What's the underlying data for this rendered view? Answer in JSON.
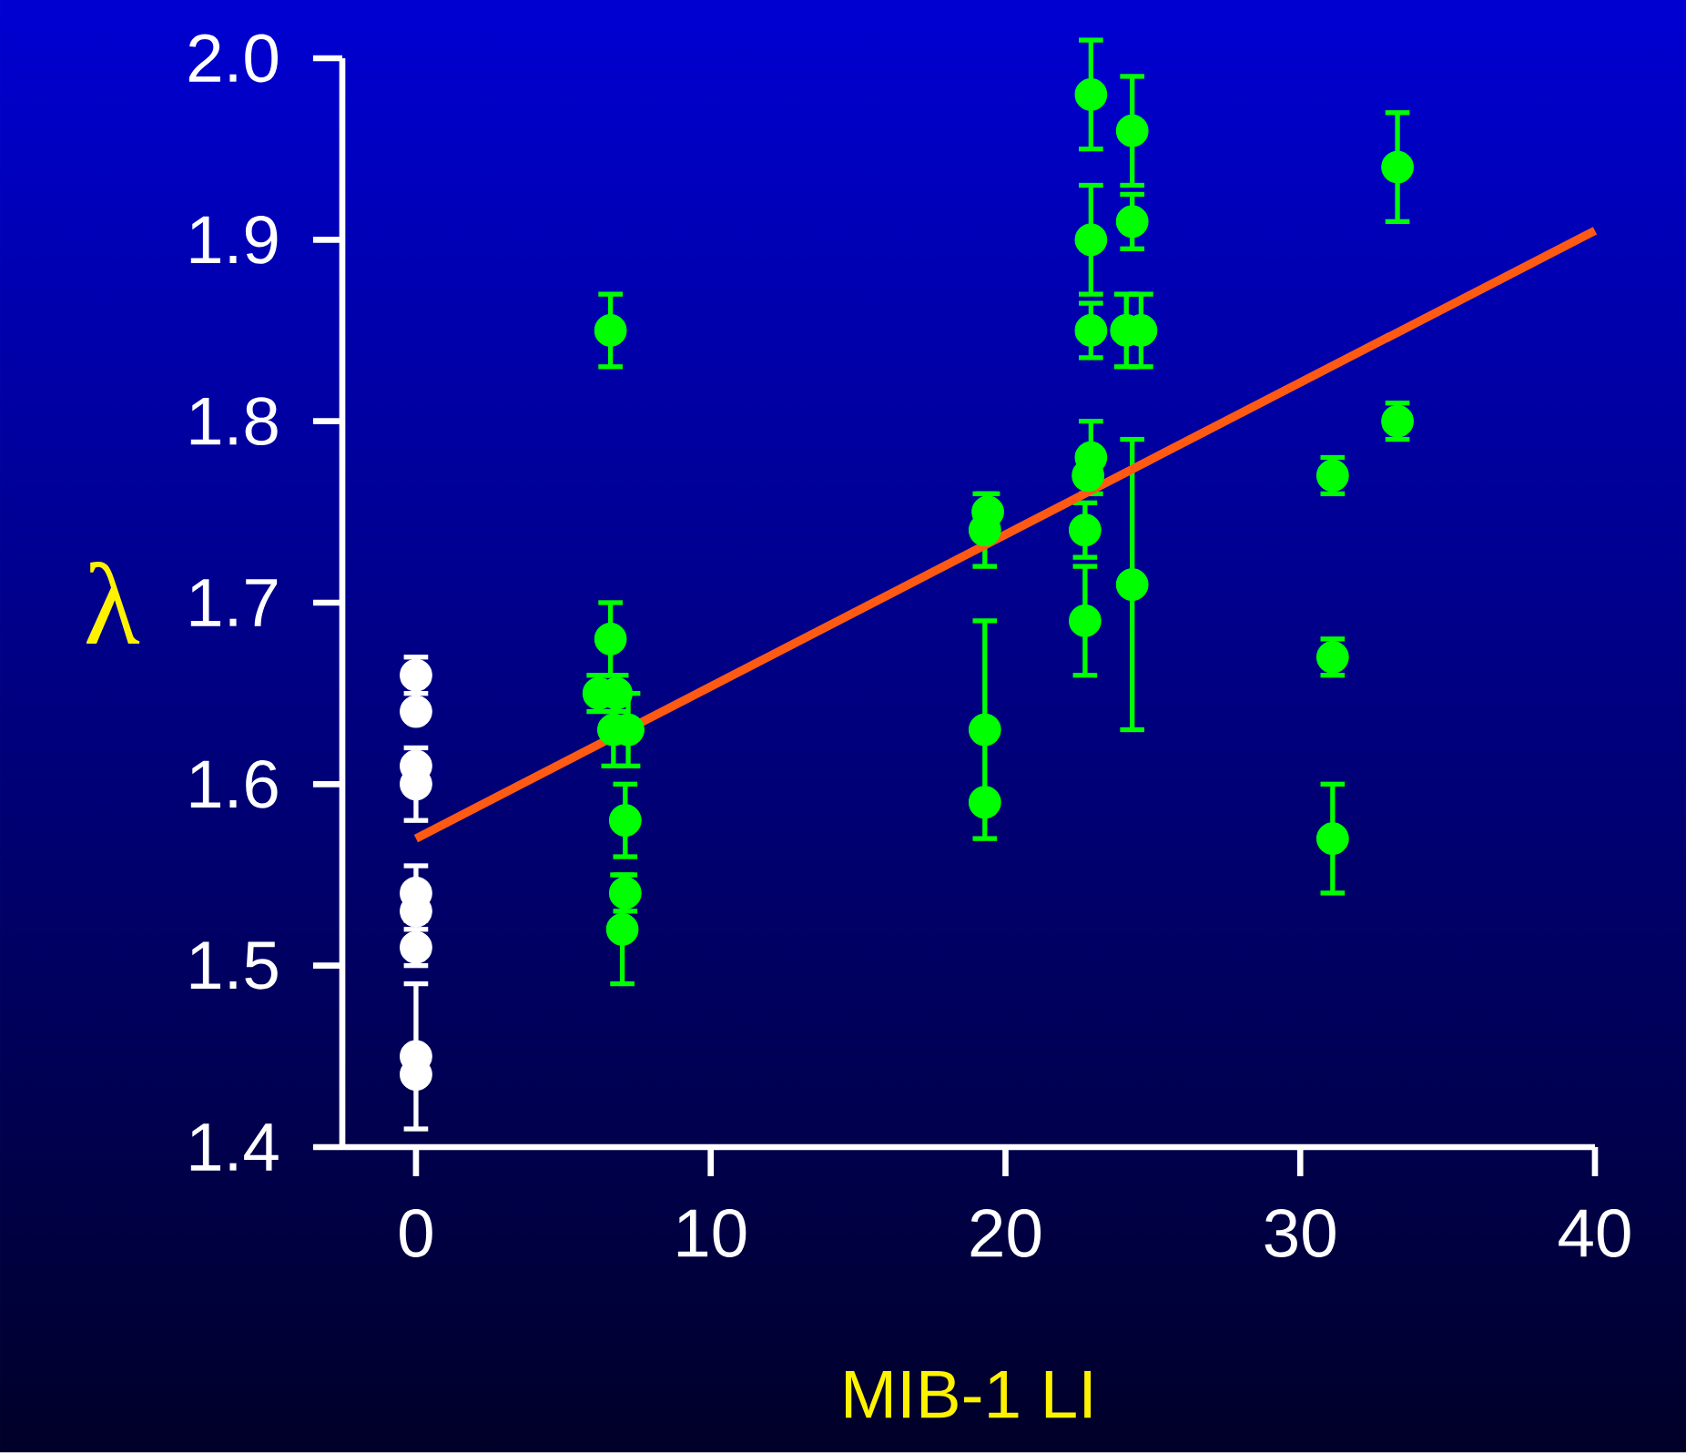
{
  "chart_data": {
    "type": "scatter",
    "xlabel": "MIB-1 LI",
    "ylabel": "λ",
    "xlim": [
      -2.5,
      40
    ],
    "xticks": [
      0,
      10,
      20,
      30,
      40
    ],
    "ylim": [
      1.4,
      2.0
    ],
    "yticks": [
      {
        "value": 1.4,
        "label": "1.4"
      },
      {
        "value": 1.5,
        "label": "1.5"
      },
      {
        "value": 1.6,
        "label": "1.6"
      },
      {
        "value": 1.7,
        "label": "1.7"
      },
      {
        "value": 1.8,
        "label": "1.8"
      },
      {
        "value": 1.9,
        "label": "1.9"
      },
      {
        "value": 2.0,
        "label": "2.0"
      }
    ],
    "series": [
      {
        "color": "#ffffff",
        "marker": "circle",
        "x": [
          0,
          0,
          0,
          0,
          0,
          0,
          0,
          0,
          0
        ],
        "values": [
          1.66,
          1.64,
          1.61,
          1.6,
          1.54,
          1.53,
          1.51,
          1.45,
          1.44
        ],
        "errors": [
          0.01,
          null,
          null,
          0.02,
          0.015,
          null,
          0.01,
          0.04,
          null
        ]
      },
      {
        "color": "#00ff00",
        "marker": "circle",
        "x": [
          6.6,
          6.6,
          6.2,
          6.8,
          6.7,
          7.2,
          7.1,
          7.1,
          7.0,
          19.4,
          19.3,
          19.3,
          19.3,
          22.9,
          22.9,
          22.9,
          22.9,
          22.8,
          22.7,
          22.7,
          24.3,
          24.3,
          24.1,
          24.6,
          24.3,
          31.1,
          31.1,
          31.1,
          33.3,
          33.3
        ],
        "values": [
          1.85,
          1.68,
          1.65,
          1.65,
          1.63,
          1.63,
          1.58,
          1.54,
          1.52,
          1.75,
          1.74,
          1.63,
          1.59,
          1.98,
          1.9,
          1.85,
          1.78,
          1.77,
          1.74,
          1.69,
          1.96,
          1.91,
          1.85,
          1.85,
          1.71,
          1.77,
          1.67,
          1.57,
          1.94,
          1.8
        ],
        "errors": [
          0.02,
          0.02,
          0.01,
          0.01,
          0.02,
          0.02,
          0.02,
          0.01,
          0.03,
          0.01,
          0.02,
          0.06,
          null,
          0.03,
          0.03,
          0.015,
          0.02,
          null,
          0.015,
          0.03,
          0.03,
          0.015,
          0.02,
          0.02,
          0.08,
          0.01,
          0.01,
          0.03,
          0.03,
          0.01
        ]
      },
      {
        "type": "line",
        "marker": "none",
        "color": "#ff5a14",
        "x": [
          0,
          40
        ],
        "values": [
          1.57,
          1.905
        ]
      }
    ]
  }
}
